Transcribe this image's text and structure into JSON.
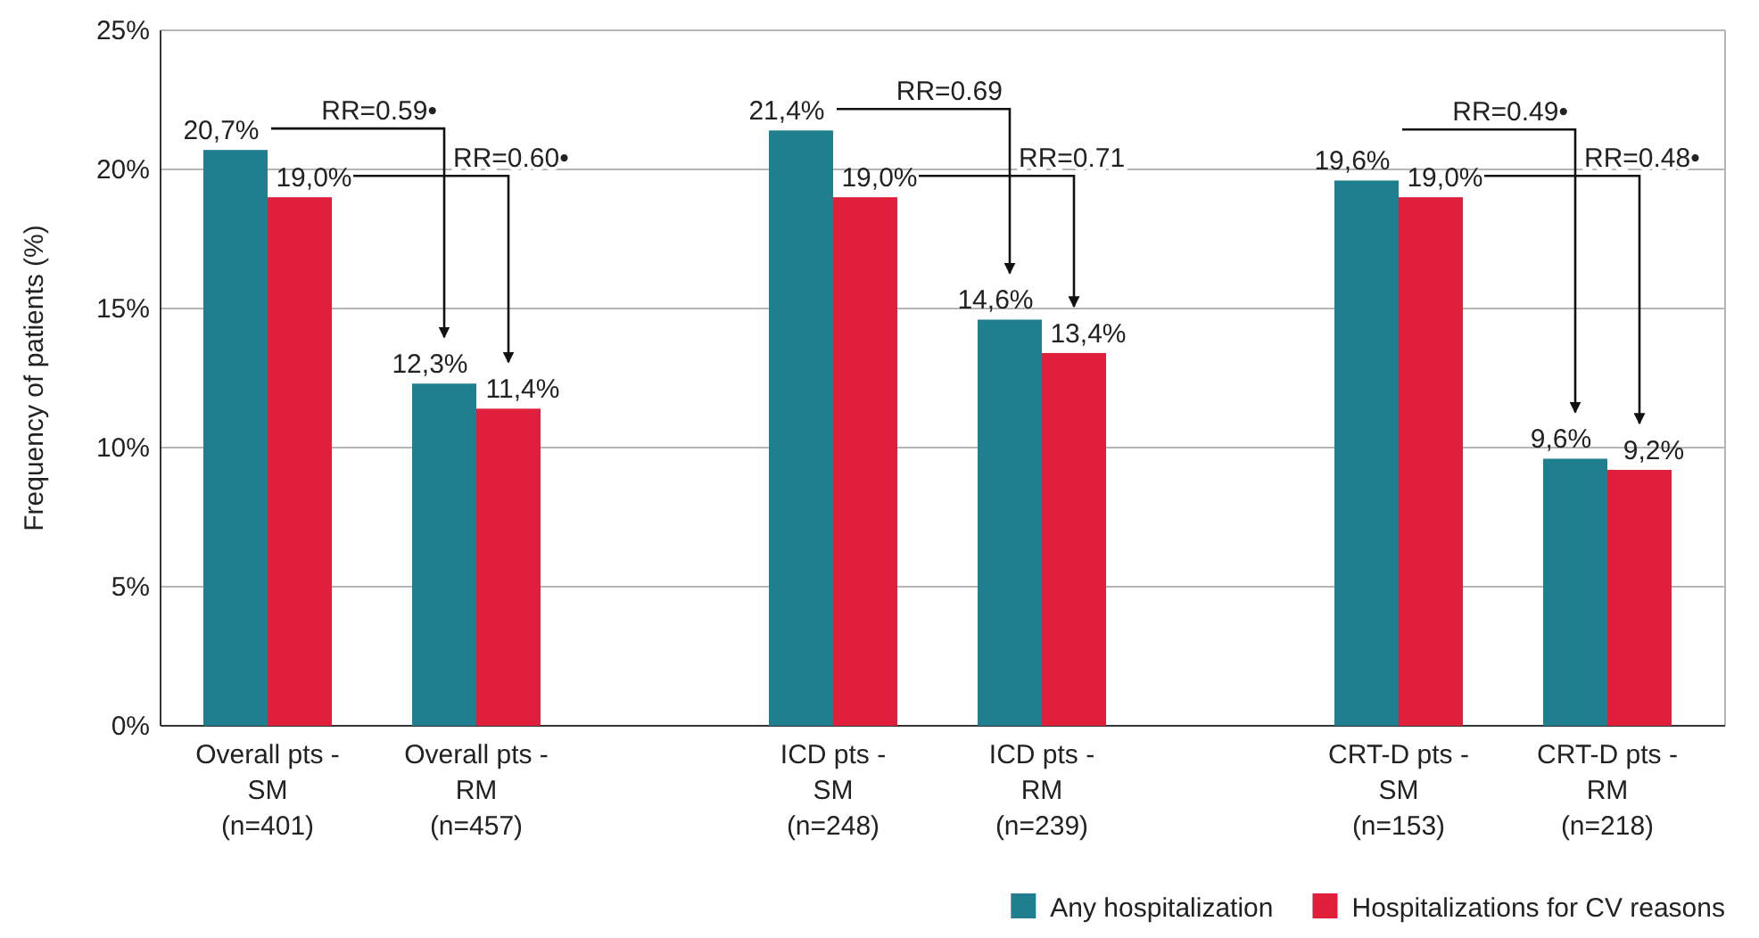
{
  "chart_data": {
    "type": "bar",
    "ylabel": "Frequency of patients (%)",
    "categories": [
      "Overall pts -\nSM\n(n=401)",
      "Overall pts -\nRM\n(n=457)",
      "ICD pts -\nSM\n(n=248)",
      "ICD pts -\nRM\n(n=239)",
      "CRT-D pts -\nSM\n(n=153)",
      "CRT-D pts -\nRM\n(n=218)"
    ],
    "series": [
      {
        "name": "Any hospitalization",
        "color": "#1f7f8e",
        "values": [
          20.7,
          12.3,
          21.4,
          14.6,
          19.6,
          9.6
        ],
        "value_labels": [
          "20,7%",
          "12,3%",
          "21,4%",
          "14,6%",
          "19,6%",
          "9,6%"
        ]
      },
      {
        "name": "Hospitalizations for CV reasons",
        "color": "#e01f3d",
        "values": [
          19.0,
          11.4,
          19.0,
          13.4,
          19.0,
          9.2
        ],
        "value_labels": [
          "19,0%",
          "11,4%",
          "19,0%",
          "13,4%",
          "19,0%",
          "9,2%"
        ]
      }
    ],
    "ylim": [
      0,
      25
    ],
    "yticks": [
      {
        "value": 0,
        "label": "0%"
      },
      {
        "value": 5,
        "label": "5%"
      },
      {
        "value": 10,
        "label": "10%"
      },
      {
        "value": 15,
        "label": "15%"
      },
      {
        "value": 20,
        "label": "20%"
      },
      {
        "value": 25,
        "label": "25%"
      }
    ],
    "grid": "y",
    "legend": "bottom right",
    "annotations": [
      "RR=0.59•",
      "RR=0.60•",
      "RR=0.69",
      "RR=0.71",
      "RR=0.49•",
      "RR=0.48•"
    ]
  }
}
